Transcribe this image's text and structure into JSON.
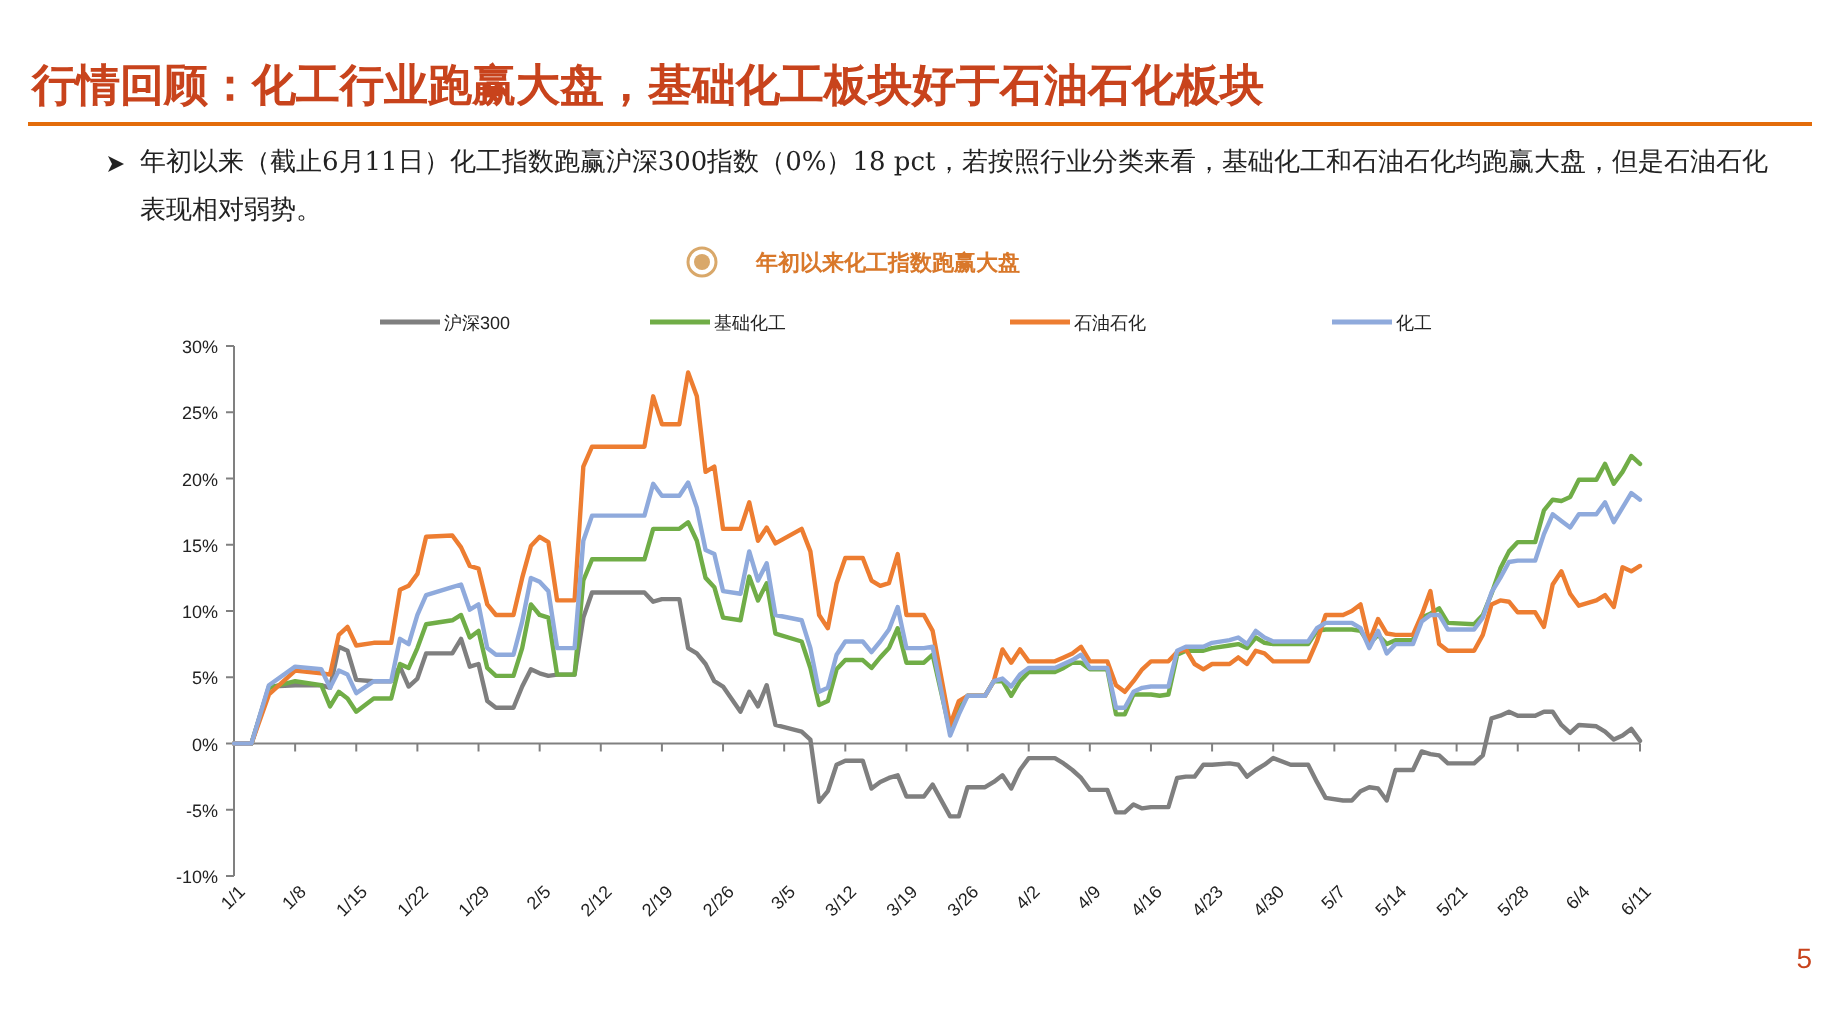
{
  "chart_data": {
    "type": "line",
    "title": "行情回顾：化工行业跑赢大盘，基础化工板块好于石油石化板块",
    "subtitle": "年初以来（截止6月11日）化工指数跑赢沪深300指数（0%）18 pct，若按照行业分类来看，基础化工和石油石化均跑赢大盘，但是石油石化表现相对弱势。",
    "annotations": [
      "年初以来化工指数跑赢大盘",
      "5"
    ],
    "legend": "top",
    "xlim": [
      "--01-01",
      "--06-11"
    ],
    "xticks": [
      {
        "value": "--01-01",
        "label": "1/1"
      },
      {
        "value": "--01-08",
        "label": "1/8"
      },
      {
        "value": "--01-15",
        "label": "1/15"
      },
      {
        "value": "--01-22",
        "label": "1/22"
      },
      {
        "value": "--01-29",
        "label": "1/29"
      },
      {
        "value": "--02-05",
        "label": "2/5"
      },
      {
        "value": "--02-12",
        "label": "2/12"
      },
      {
        "value": "--02-19",
        "label": "2/19"
      },
      {
        "value": "--02-26",
        "label": "2/26"
      },
      {
        "value": "--03-05",
        "label": "3/5"
      },
      {
        "value": "--03-12",
        "label": "3/12"
      },
      {
        "value": "--03-19",
        "label": "3/19"
      },
      {
        "value": "--03-26",
        "label": "3/26"
      },
      {
        "value": "--04-02",
        "label": "4/2"
      },
      {
        "value": "--04-09",
        "label": "4/9"
      },
      {
        "value": "--04-16",
        "label": "4/16"
      },
      {
        "value": "--04-23",
        "label": "4/23"
      },
      {
        "value": "--04-30",
        "label": "4/30"
      },
      {
        "value": "--05-07",
        "label": "5/7"
      },
      {
        "value": "--05-14",
        "label": "5/14"
      },
      {
        "value": "--05-21",
        "label": "5/21"
      },
      {
        "value": "--05-28",
        "label": "5/28"
      },
      {
        "value": "--06-04",
        "label": "6/4"
      },
      {
        "value": "--06-11",
        "label": "6/11"
      }
    ],
    "ylim": [
      -10,
      30
    ],
    "yticks": [
      {
        "value": -10,
        "label": "-10%"
      },
      {
        "value": -5,
        "label": "-5%"
      },
      {
        "value": 0,
        "label": "0%"
      },
      {
        "value": 5,
        "label": "5%"
      },
      {
        "value": 10,
        "label": "10%"
      },
      {
        "value": 15,
        "label": "15%"
      },
      {
        "value": 20,
        "label": "20%"
      },
      {
        "value": 25,
        "label": "25%"
      },
      {
        "value": 30,
        "label": "30%"
      }
    ],
    "x": [
      "--01-01",
      "--01-03",
      "--01-05",
      "--01-08",
      "--01-11",
      "--01-12",
      "--01-13",
      "--01-14",
      "--01-15",
      "--01-17",
      "--01-19",
      "--01-20",
      "--01-21",
      "--01-22",
      "--01-23",
      "--01-26",
      "--01-27",
      "--01-28",
      "--01-29",
      "--01-30",
      "--01-31",
      "--02-02",
      "--02-03",
      "--02-04",
      "--02-05",
      "--02-06",
      "--02-07",
      "--02-09",
      "--02-10",
      "--02-11",
      "--02-17",
      "--02-18",
      "--02-19",
      "--02-21",
      "--02-22",
      "--02-23",
      "--02-24",
      "--02-25",
      "--02-26",
      "--02-28",
      "--03-01",
      "--03-02",
      "--03-03",
      "--03-04",
      "--03-07",
      "--03-08",
      "--03-09",
      "--03-10",
      "--03-11",
      "--03-12",
      "--03-14",
      "--03-15",
      "--03-16",
      "--03-17",
      "--03-18",
      "--03-19",
      "--03-21",
      "--03-22",
      "--03-24",
      "--03-25",
      "--03-26",
      "--03-28",
      "--03-29",
      "--03-30",
      "--03-31",
      "--04-01",
      "--04-02",
      "--04-05",
      "--04-06",
      "--04-07",
      "--04-08",
      "--04-09",
      "--04-11",
      "--04-12",
      "--04-13",
      "--04-14",
      "--04-15",
      "--04-16",
      "--04-17",
      "--04-18",
      "--04-19",
      "--04-20",
      "--04-21",
      "--04-22",
      "--04-23",
      "--04-25",
      "--04-26",
      "--04-27",
      "--04-28",
      "--04-29",
      "--04-30",
      "--05-02",
      "--05-04",
      "--05-05",
      "--05-06",
      "--05-08",
      "--05-09",
      "--05-10",
      "--05-11",
      "--05-12",
      "--05-13",
      "--05-14",
      "--05-16",
      "--05-17",
      "--05-18",
      "--05-19",
      "--05-20",
      "--05-23",
      "--05-24",
      "--05-25",
      "--05-26",
      "--05-27",
      "--05-28",
      "--05-30",
      "--05-31",
      "--06-01",
      "--06-02",
      "--06-03",
      "--06-04",
      "--06-06",
      "--06-07",
      "--06-08",
      "--06-09",
      "--06-10",
      "--06-11"
    ],
    "series": [
      {
        "name": "沪深300",
        "color": "#7f7f7f",
        "values": [
          0,
          0,
          4.3,
          4.4,
          4.4,
          4.2,
          7.3,
          7.0,
          4.8,
          4.7,
          4.7,
          5.8,
          4.3,
          4.9,
          6.8,
          6.8,
          7.9,
          5.8,
          6.0,
          3.2,
          2.7,
          2.7,
          4.3,
          5.6,
          5.3,
          5.1,
          5.2,
          5.2,
          9.5,
          11.4,
          11.4,
          10.7,
          10.9,
          10.9,
          7.2,
          6.8,
          6.0,
          4.7,
          4.3,
          2.4,
          3.9,
          2.8,
          4.4,
          1.4,
          0.9,
          0.3,
          -4.4,
          -3.6,
          -1.6,
          -1.3,
          -1.3,
          -3.4,
          -2.9,
          -2.6,
          -2.4,
          -4.0,
          -4.0,
          -3.1,
          -5.5,
          -5.5,
          -3.3,
          -3.3,
          -2.9,
          -2.4,
          -3.4,
          -2.0,
          -1.1,
          -1.1,
          -1.5,
          -2.0,
          -2.6,
          -3.5,
          -3.5,
          -5.2,
          -5.2,
          -4.6,
          -4.9,
          -4.8,
          -4.8,
          -4.8,
          -2.6,
          -2.5,
          -2.5,
          -1.6,
          -1.6,
          -1.5,
          -1.6,
          -2.5,
          -2.0,
          -1.6,
          -1.1,
          -1.6,
          -1.6,
          -2.9,
          -4.1,
          -4.3,
          -4.3,
          -3.6,
          -3.3,
          -3.4,
          -4.3,
          -2.0,
          -2.0,
          -0.6,
          -0.8,
          -0.9,
          -1.5,
          -1.5,
          -0.9,
          1.9,
          2.1,
          2.4,
          2.1,
          2.1,
          2.4,
          2.4,
          1.4,
          0.8,
          1.4,
          1.3,
          0.9,
          0.3,
          0.6,
          1.1,
          0.2
        ]
      },
      {
        "name": "基础化工",
        "color": "#70ad47",
        "values": [
          0,
          0,
          4.2,
          4.7,
          4.4,
          2.8,
          3.9,
          3.4,
          2.4,
          3.4,
          3.4,
          6.0,
          5.7,
          7.2,
          9.0,
          9.3,
          9.7,
          8.0,
          8.5,
          5.7,
          5.1,
          5.1,
          7.2,
          10.5,
          9.7,
          9.5,
          5.2,
          5.2,
          12.3,
          13.9,
          13.9,
          16.2,
          16.2,
          16.2,
          16.7,
          15.3,
          12.5,
          11.8,
          9.5,
          9.3,
          12.6,
          10.8,
          12.1,
          8.3,
          7.7,
          5.7,
          2.9,
          3.2,
          5.6,
          6.3,
          6.3,
          5.7,
          6.5,
          7.2,
          8.7,
          6.1,
          6.1,
          6.7,
          0.9,
          2.6,
          3.6,
          3.6,
          4.7,
          4.7,
          3.6,
          4.7,
          5.4,
          5.4,
          5.7,
          6.1,
          6.1,
          5.6,
          5.6,
          2.2,
          2.2,
          3.7,
          3.7,
          3.7,
          3.6,
          3.7,
          6.7,
          7.0,
          7.0,
          7.0,
          7.2,
          7.4,
          7.5,
          7.2,
          8.0,
          7.6,
          7.5,
          7.5,
          7.5,
          8.5,
          8.6,
          8.6,
          8.6,
          8.5,
          7.5,
          8.2,
          7.5,
          7.8,
          7.8,
          9.5,
          9.8,
          10.2,
          9.1,
          9.0,
          9.7,
          11.3,
          13.2,
          14.5,
          15.2,
          15.2,
          17.6,
          18.4,
          18.3,
          18.6,
          19.9,
          19.9,
          21.1,
          19.6,
          20.5,
          21.7,
          21.1
        ]
      },
      {
        "name": "石油石化",
        "color": "#ed7d31",
        "values": [
          0,
          0,
          3.7,
          5.5,
          5.3,
          5.2,
          8.2,
          8.8,
          7.4,
          7.6,
          7.6,
          11.6,
          11.9,
          12.8,
          15.6,
          15.7,
          14.8,
          13.4,
          13.2,
          10.5,
          9.7,
          9.7,
          12.5,
          14.9,
          15.6,
          15.2,
          10.8,
          10.8,
          20.9,
          22.4,
          22.4,
          26.2,
          24.1,
          24.1,
          28.0,
          26.2,
          20.5,
          20.9,
          16.2,
          16.2,
          18.2,
          15.3,
          16.3,
          15.1,
          16.2,
          14.5,
          9.7,
          8.7,
          12.1,
          14.0,
          14.0,
          12.3,
          11.9,
          12.1,
          14.3,
          9.7,
          9.7,
          8.5,
          1.4,
          3.2,
          3.6,
          3.6,
          4.7,
          7.1,
          6.1,
          7.1,
          6.2,
          6.2,
          6.5,
          6.8,
          7.3,
          6.2,
          6.2,
          4.4,
          3.9,
          4.7,
          5.6,
          6.2,
          6.2,
          6.2,
          6.9,
          7.1,
          6.0,
          5.6,
          6.0,
          6.0,
          6.5,
          6.0,
          7.0,
          6.8,
          6.2,
          6.2,
          6.2,
          7.7,
          9.7,
          9.7,
          10.0,
          10.5,
          7.7,
          9.4,
          8.3,
          8.2,
          8.2,
          9.7,
          11.5,
          7.5,
          7.0,
          7.0,
          8.2,
          10.5,
          10.8,
          10.7,
          9.9,
          9.9,
          8.8,
          12.0,
          13.0,
          11.3,
          10.4,
          10.8,
          11.2,
          10.3,
          13.3,
          13.0,
          13.4
        ]
      },
      {
        "name": "化工",
        "color": "#8faadc",
        "values": [
          0,
          0,
          4.4,
          5.8,
          5.6,
          4.2,
          5.5,
          5.2,
          3.8,
          4.7,
          4.7,
          7.9,
          7.5,
          9.7,
          11.2,
          11.8,
          12.0,
          10.1,
          10.5,
          7.2,
          6.7,
          6.7,
          9.2,
          12.5,
          12.2,
          11.5,
          7.2,
          7.2,
          15.3,
          17.2,
          17.2,
          19.6,
          18.7,
          18.7,
          19.7,
          17.8,
          14.6,
          14.3,
          11.5,
          11.3,
          14.5,
          12.3,
          13.6,
          9.7,
          9.3,
          7.2,
          3.9,
          4.2,
          6.7,
          7.7,
          7.7,
          6.9,
          7.7,
          8.6,
          10.3,
          7.2,
          7.2,
          7.3,
          0.6,
          2.2,
          3.6,
          3.6,
          4.7,
          4.9,
          4.3,
          5.2,
          5.7,
          5.7,
          6.0,
          6.3,
          6.7,
          5.7,
          5.7,
          2.7,
          2.7,
          3.9,
          4.2,
          4.3,
          4.3,
          4.3,
          7.0,
          7.3,
          7.3,
          7.3,
          7.6,
          7.8,
          8.0,
          7.5,
          8.5,
          8.0,
          7.7,
          7.7,
          7.7,
          8.7,
          9.1,
          9.1,
          9.1,
          8.7,
          7.2,
          8.5,
          6.8,
          7.5,
          7.5,
          9.2,
          9.7,
          9.7,
          8.6,
          8.6,
          9.5,
          11.4,
          12.5,
          13.7,
          13.8,
          13.8,
          15.8,
          17.3,
          16.8,
          16.3,
          17.3,
          17.3,
          18.2,
          16.7,
          17.8,
          18.9,
          18.4
        ]
      }
    ]
  }
}
